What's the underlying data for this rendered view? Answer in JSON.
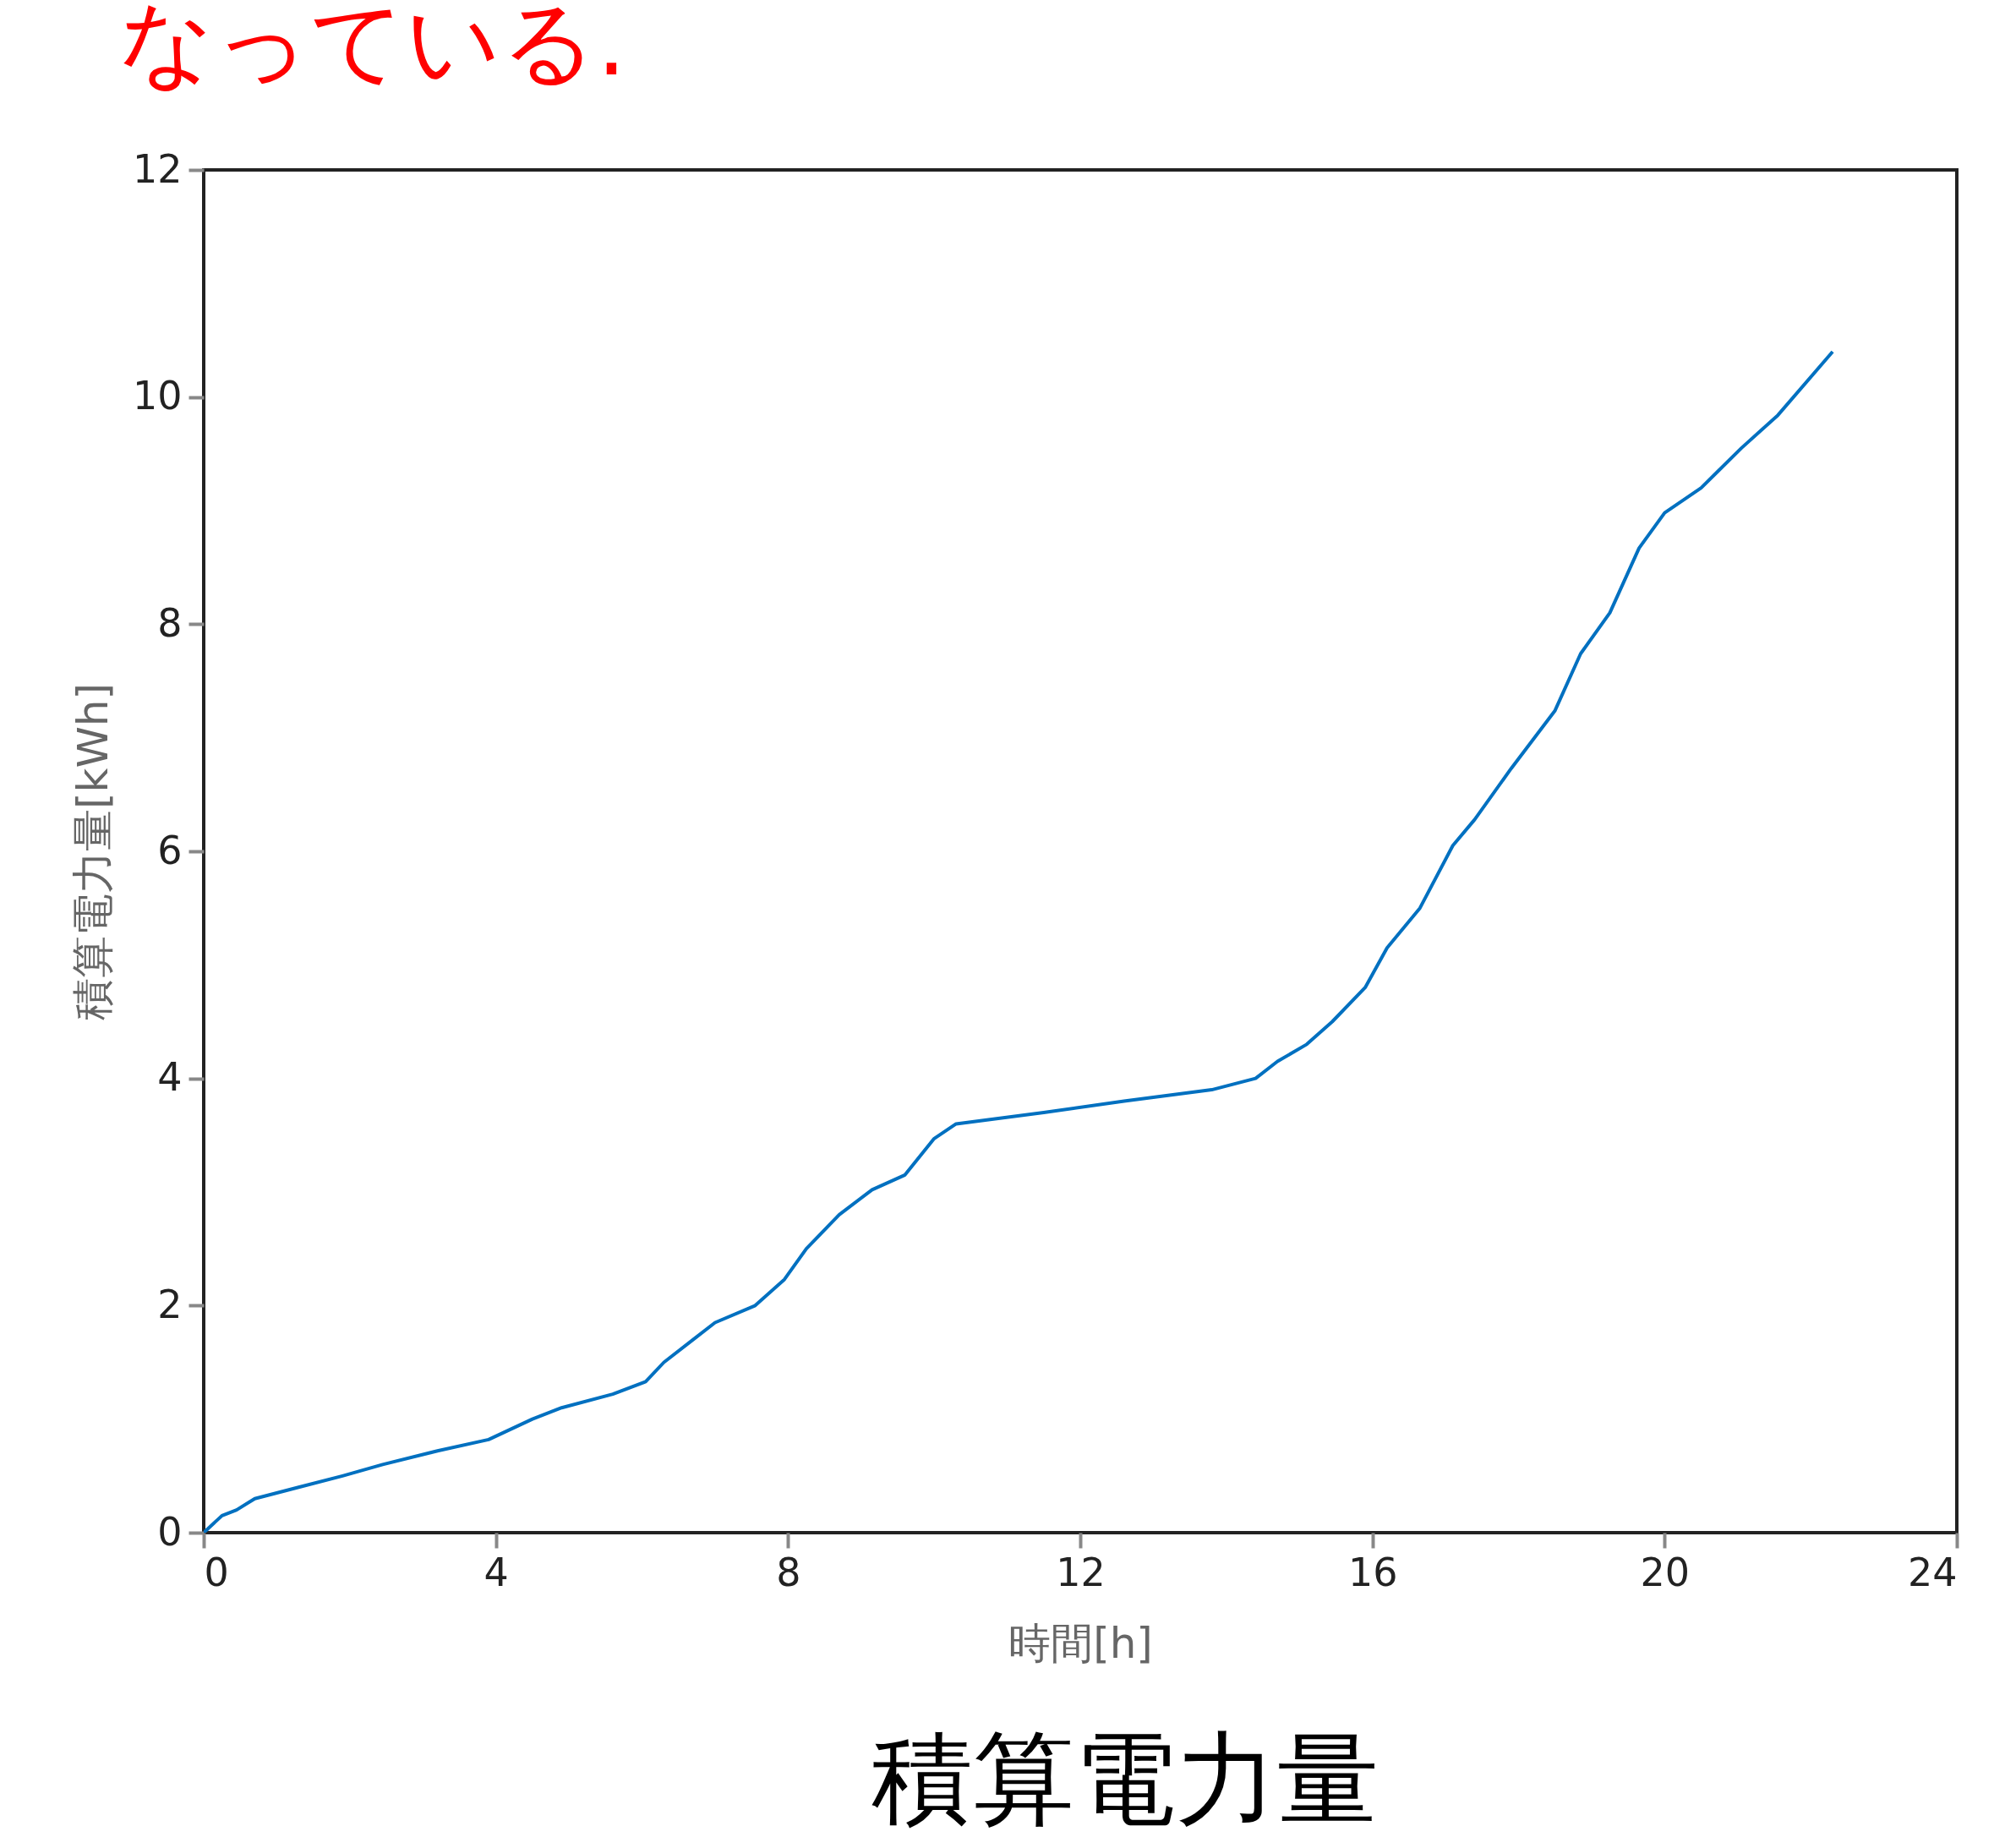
{
  "chart_data": {
    "type": "line",
    "xlabel": "時間[h]",
    "ylabel": "積算電力量[kWh]",
    "annotations": [
      "なっている.",
      "積算電力量"
    ],
    "xlim": [
      0,
      24
    ],
    "xticks": [
      0,
      4,
      8,
      12,
      16,
      20,
      24
    ],
    "ylim": [
      0,
      12
    ],
    "yticks": [
      0,
      2,
      4,
      6,
      8,
      10,
      12
    ],
    "grid": false,
    "series": [
      {
        "color": "#0070c0",
        "x": [
          0,
          0.25,
          0.45,
          0.7,
          1.3,
          1.9,
          2.45,
          3.2,
          3.9,
          4.5,
          4.9,
          5.6,
          6.05,
          6.3,
          6.7,
          7.0,
          7.55,
          7.95,
          8.25,
          8.7,
          9.15,
          9.6,
          10.0,
          10.3,
          11.5,
          12.6,
          13.8,
          14.4,
          14.7,
          15.1,
          15.45,
          15.9,
          16.2,
          16.65,
          17.1,
          17.4,
          17.9,
          18.5,
          18.85,
          19.25,
          19.65,
          20.0,
          20.5,
          21.05,
          21.55,
          22.3
        ],
        "values": [
          0,
          0.15,
          0.2,
          0.3,
          0.4,
          0.5,
          0.6,
          0.72,
          0.82,
          1.0,
          1.1,
          1.22,
          1.33,
          1.5,
          1.7,
          1.85,
          2.0,
          2.23,
          2.5,
          2.8,
          3.02,
          3.15,
          3.47,
          3.6,
          3.7,
          3.8,
          3.9,
          4.0,
          4.15,
          4.3,
          4.5,
          4.8,
          5.15,
          5.5,
          6.05,
          6.28,
          6.73,
          7.24,
          7.74,
          8.1,
          8.67,
          8.98,
          9.2,
          9.55,
          9.84,
          10.4
        ]
      }
    ]
  }
}
